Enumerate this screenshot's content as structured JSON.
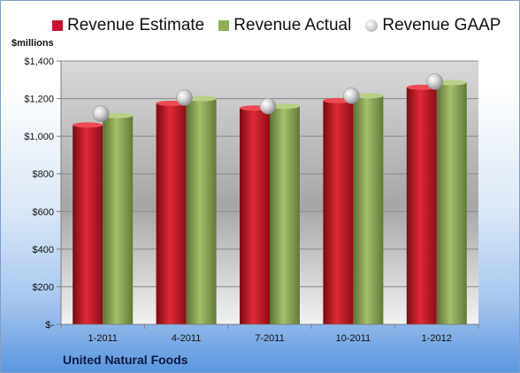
{
  "chart_data": {
    "type": "bar",
    "categories": [
      "1-2011",
      "4-2011",
      "7-2011",
      "10-2011",
      "1-2012"
    ],
    "series": [
      {
        "name": "Revenue Estimate",
        "values": [
          1060,
          1175,
          1150,
          1190,
          1260
        ],
        "color": "#c8102e",
        "kind": "bar"
      },
      {
        "name": "Revenue Actual",
        "values": [
          1110,
          1200,
          1160,
          1215,
          1285
        ],
        "color": "#8fad57",
        "kind": "bar"
      },
      {
        "name": "Revenue GAAP",
        "values": [
          1120,
          1205,
          1160,
          1215,
          1290
        ],
        "color": "#bfbfbf",
        "kind": "marker"
      }
    ],
    "ylabel": "$millions",
    "ylim": [
      0,
      1400
    ],
    "yticks": [
      0,
      200,
      400,
      600,
      800,
      1000,
      1200,
      1400
    ],
    "ytick_labels": [
      "$-",
      "$200",
      "$400",
      "$600",
      "$800",
      "$1,000",
      "$1,200",
      "$1,400"
    ],
    "grid": true,
    "legend_position": "top"
  },
  "legend": {
    "estimate": "Revenue Estimate",
    "actual": "Revenue Actual",
    "gaap": "Revenue GAAP"
  },
  "ylabel": "$millions",
  "company": "United Natural Foods"
}
